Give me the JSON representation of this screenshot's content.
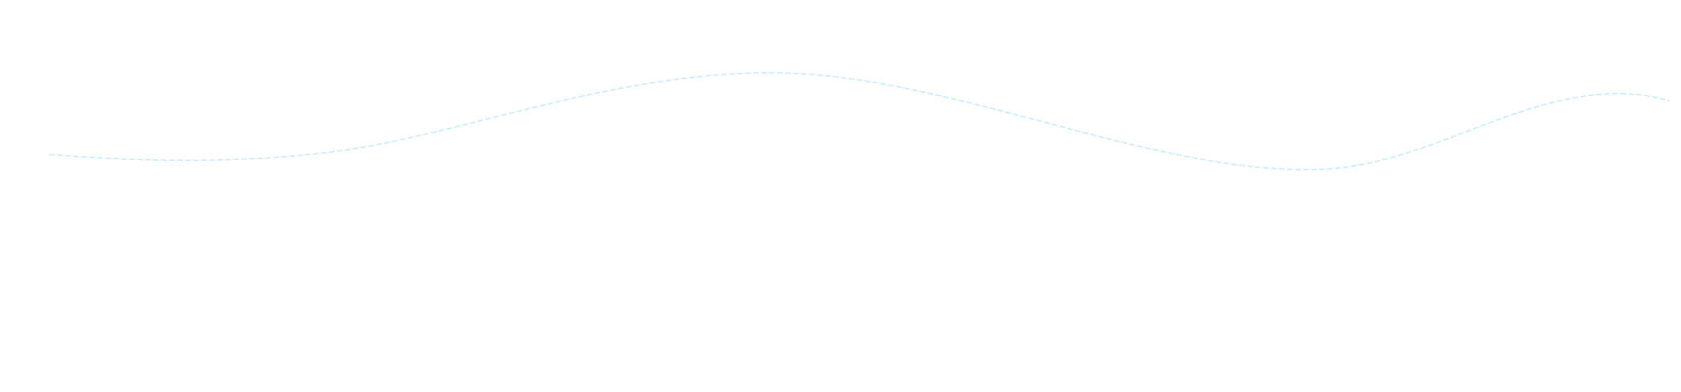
{
  "wave": {
    "stroke_color": "#c6ebfb",
    "style": "dashed"
  }
}
